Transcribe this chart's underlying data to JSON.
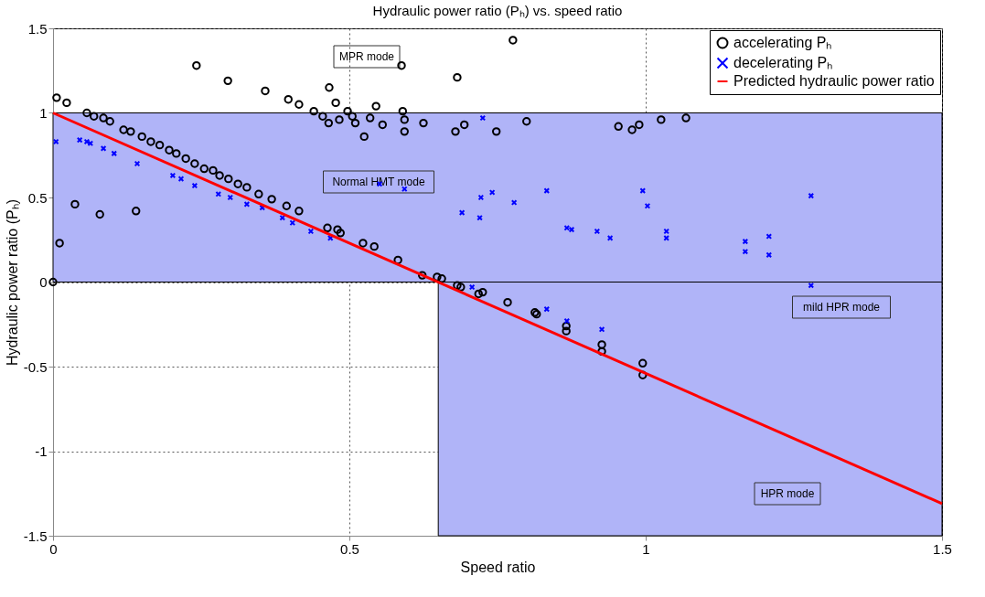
{
  "chart_data": {
    "type": "scatter",
    "title": "Hydraulic power ratio (Pₕ) vs. speed ratio",
    "xlabel": "Speed ratio",
    "ylabel": "Hydraulic power ratio (Pₕ)",
    "xlim": [
      0,
      1.5
    ],
    "ylim": [
      -1.5,
      1.5
    ],
    "xticks": [
      0,
      0.5,
      1,
      1.5
    ],
    "yticks": [
      -1.5,
      -1,
      -0.5,
      0,
      0.5,
      1,
      1.5
    ],
    "grid": true,
    "legend": "top right",
    "series": [
      {
        "name": "accelerating Pₕ",
        "type": "scatter",
        "marker": "circle",
        "color": "#000000",
        "x": [
          0,
          0.006,
          0.023,
          0.011,
          0.037,
          0.057,
          0.069,
          0.079,
          0.085,
          0.096,
          0.14,
          0.119,
          0.131,
          0.15,
          0.165,
          0.18,
          0.196,
          0.208,
          0.224,
          0.239,
          0.255,
          0.27,
          0.281,
          0.296,
          0.312,
          0.327,
          0.347,
          0.369,
          0.394,
          0.415,
          0.242,
          0.295,
          0.358,
          0.397,
          0.415,
          0.466,
          0.477,
          0.44,
          0.455,
          0.465,
          0.483,
          0.497,
          0.505,
          0.51,
          0.525,
          0.545,
          0.535,
          0.556,
          0.588,
          0.59,
          0.593,
          0.593,
          0.625,
          0.682,
          0.679,
          0.694,
          0.748,
          0.799,
          0.776,
          0.954,
          0.977,
          0.989,
          1.026,
          1.068,
          0.463,
          0.48,
          0.485,
          0.523,
          0.542,
          0.582,
          0.623,
          0.648,
          0.656,
          0.682,
          0.688,
          0.718,
          0.725,
          0.767,
          0.813,
          0.816,
          0.866,
          0.866,
          0.926,
          0.926,
          0.995,
          0.995
        ],
        "values": [
          0,
          1.09,
          1.06,
          0.23,
          0.46,
          1.0,
          0.98,
          0.4,
          0.97,
          0.95,
          0.42,
          0.9,
          0.89,
          0.86,
          0.83,
          0.81,
          0.78,
          0.76,
          0.73,
          0.7,
          0.67,
          0.66,
          0.63,
          0.61,
          0.58,
          0.56,
          0.52,
          0.49,
          0.45,
          0.42,
          1.28,
          1.19,
          1.13,
          1.08,
          1.05,
          1.15,
          1.06,
          1.01,
          0.98,
          0.94,
          0.96,
          1.01,
          0.98,
          0.94,
          0.86,
          1.04,
          0.97,
          0.93,
          1.28,
          1.01,
          0.96,
          0.89,
          0.94,
          1.21,
          0.89,
          0.93,
          0.89,
          0.95,
          1.43,
          0.92,
          0.9,
          0.93,
          0.96,
          0.97,
          0.32,
          0.31,
          0.29,
          0.23,
          0.21,
          0.13,
          0.04,
          0.03,
          0.02,
          -0.02,
          -0.03,
          -0.07,
          -0.06,
          -0.12,
          -0.18,
          -0.19,
          -0.26,
          -0.29,
          -0.37,
          -0.41,
          -0.48,
          -0.55
        ]
      },
      {
        "name": "decelerating Pₕ",
        "type": "scatter",
        "marker": "cross",
        "color": "#0000ff",
        "x": [
          0.005,
          0.045,
          0.057,
          0.063,
          0.085,
          0.103,
          0.142,
          0.202,
          0.216,
          0.239,
          0.279,
          0.299,
          0.327,
          0.353,
          0.387,
          0.404,
          0.435,
          0.468,
          0.551,
          0.593,
          0.725,
          0.69,
          0.72,
          0.741,
          0.722,
          0.778,
          0.833,
          0.867,
          0.875,
          0.918,
          0.94,
          0.995,
          1.003,
          1.035,
          1.035,
          1.168,
          1.168,
          1.208,
          1.208,
          1.279,
          1.279,
          0.707,
          0.833,
          0.867,
          0.926
        ],
        "values": [
          0.83,
          0.84,
          0.83,
          0.82,
          0.79,
          0.76,
          0.7,
          0.63,
          0.61,
          0.57,
          0.52,
          0.5,
          0.46,
          0.44,
          0.38,
          0.35,
          0.3,
          0.26,
          0.58,
          0.55,
          0.97,
          0.41,
          0.38,
          0.53,
          0.5,
          0.47,
          0.54,
          0.32,
          0.31,
          0.3,
          0.26,
          0.54,
          0.45,
          0.3,
          0.26,
          0.24,
          0.18,
          0.27,
          0.16,
          0.51,
          -0.02,
          -0.03,
          -0.16,
          -0.23,
          -0.28
        ]
      },
      {
        "name": "Predicted hydraulic power ratio",
        "type": "line",
        "line_style": "solid",
        "color": "#ff0000",
        "x": [
          0,
          1.5
        ],
        "values": [
          1,
          -1.31
        ]
      }
    ],
    "bands": [
      {
        "axis": "y",
        "from": 0,
        "to": 1,
        "color": "#b0b4f8"
      },
      {
        "axis": "x",
        "from": 0.65,
        "to": 1.5,
        "color": "#b0b4f8"
      }
    ],
    "annotations": [
      "MPR mode",
      "Normal HMT mode",
      "mild HPR mode",
      "HPR mode"
    ]
  }
}
